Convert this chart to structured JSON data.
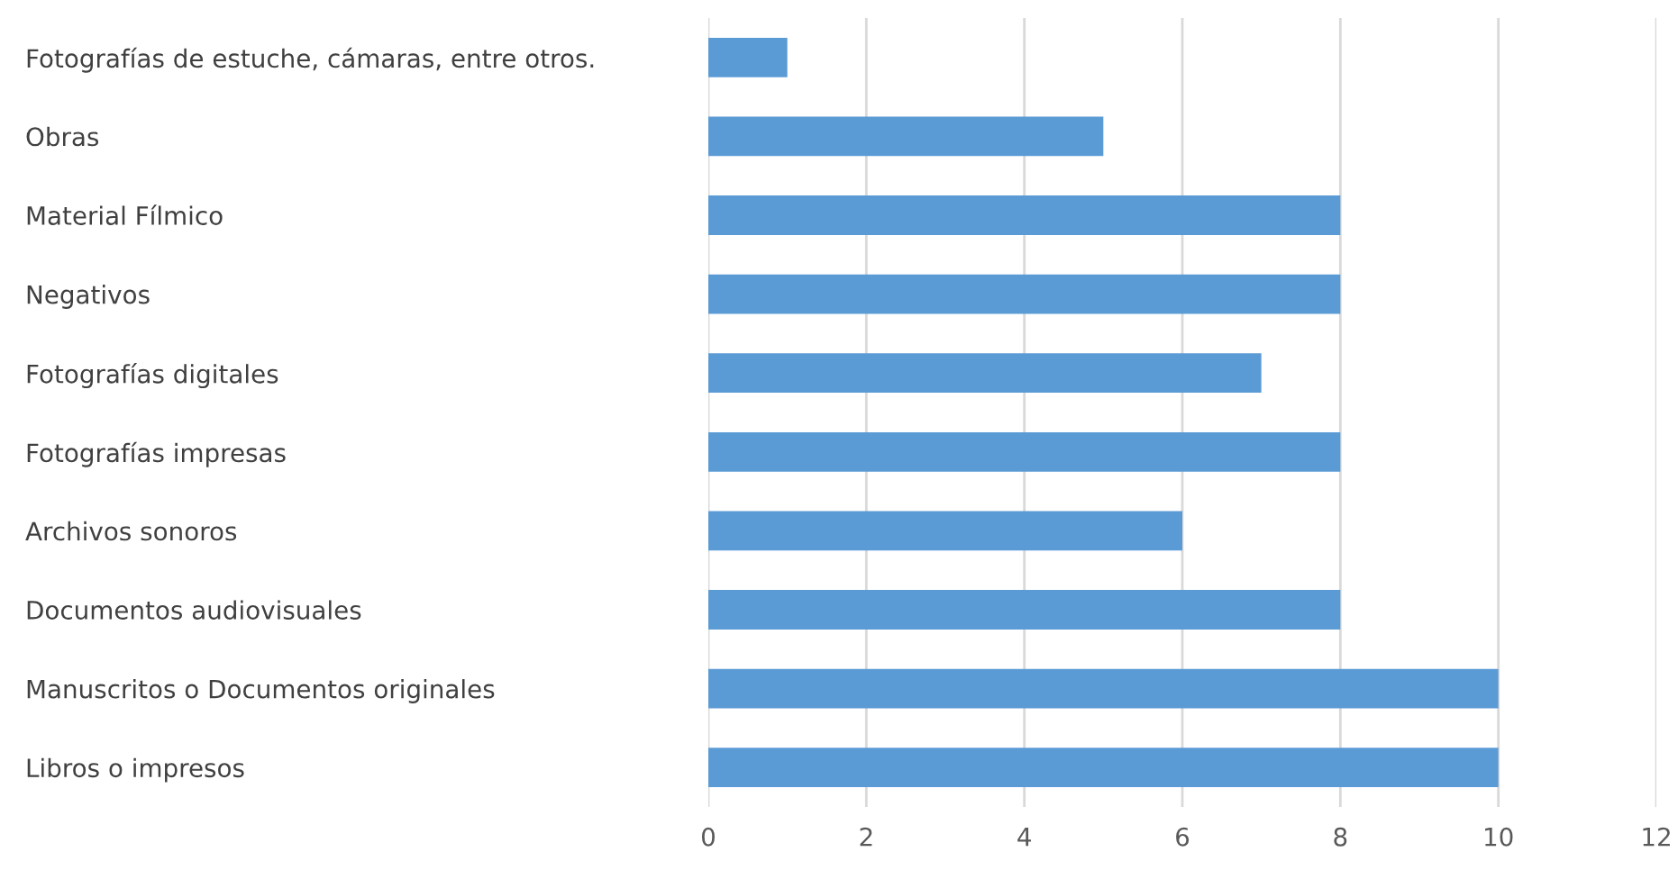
{
  "chart_data": {
    "type": "bar",
    "orientation": "horizontal",
    "categories": [
      "Fotografías de estuche, cámaras, entre otros.",
      "Obras",
      "Material Fílmico",
      "Negativos",
      "Fotografías digitales",
      "Fotografías impresas",
      "Archivos sonoros",
      "Documentos audiovisuales",
      "Manuscritos o Documentos originales",
      "Libros o impresos"
    ],
    "values": [
      1,
      5,
      8,
      8,
      7,
      8,
      6,
      8,
      10,
      10
    ],
    "color": "#5b9bd5",
    "xlim": [
      0,
      12
    ],
    "xticks": [
      0,
      2,
      4,
      6,
      8,
      10,
      12
    ],
    "grid": "x"
  }
}
